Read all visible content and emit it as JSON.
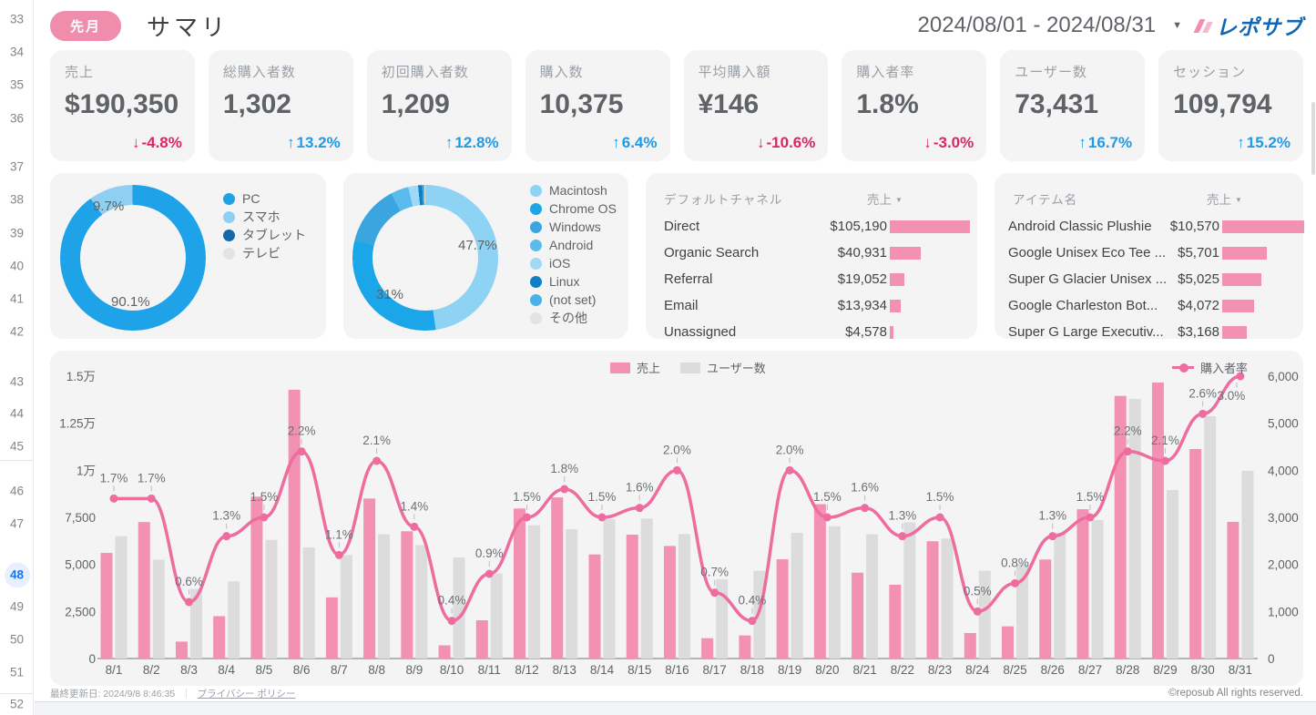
{
  "colors": {
    "accent_pink": "#f08cac",
    "bar_pink": "#f291b2",
    "bar_gray": "#dcdcdc",
    "line_pink": "#ee6c9e",
    "up_blue": "#1d9be8",
    "down_pink": "#e0245e",
    "rail_active_blue": "#1a73e8",
    "logo_blue": "#1266b6"
  },
  "rail": {
    "numbers": [
      33,
      34,
      35,
      36,
      37,
      38,
      39,
      40,
      41,
      42,
      43,
      44,
      45,
      46,
      47,
      48,
      49,
      50,
      51,
      52
    ],
    "active": 48
  },
  "header": {
    "badge": "先月",
    "title": "サマリ",
    "date_range": "2024/08/01 - 2024/08/31",
    "logo_text": "レポサブ"
  },
  "kpis": [
    {
      "label": "売上",
      "value": "$190,350",
      "delta": "-4.8%",
      "direction": "down"
    },
    {
      "label": "総購入者数",
      "value": "1,302",
      "delta": "13.2%",
      "direction": "up"
    },
    {
      "label": "初回購入者数",
      "value": "1,209",
      "delta": "12.8%",
      "direction": "up"
    },
    {
      "label": "購入数",
      "value": "10,375",
      "delta": "6.4%",
      "direction": "up"
    },
    {
      "label": "平均購入額",
      "value": "¥146",
      "delta": "-10.6%",
      "direction": "down"
    },
    {
      "label": "購入者率",
      "value": "1.8%",
      "delta": "-3.0%",
      "direction": "down"
    },
    {
      "label": "ユーザー数",
      "value": "73,431",
      "delta": "16.7%",
      "direction": "up"
    },
    {
      "label": "セッション",
      "value": "109,794",
      "delta": "15.2%",
      "direction": "up"
    }
  ],
  "device_donut": {
    "label_primary": "90.1%",
    "label_secondary": "9.7%",
    "segments": [
      {
        "label": "PC",
        "pct": 90.1,
        "color": "#1fa3e8"
      },
      {
        "label": "スマホ",
        "pct": 9.7,
        "color": "#8fd0f2"
      },
      {
        "label": "タブレット",
        "pct": 0.13,
        "color": "#1567a9"
      },
      {
        "label": "テレビ",
        "pct": 0.07,
        "color": "#e3e3e3"
      }
    ]
  },
  "os_donut": {
    "label_primary": "47.7%",
    "label_secondary": "31%",
    "segments": [
      {
        "label": "Macintosh",
        "pct": 47.7,
        "color": "#8ed2f4"
      },
      {
        "label": "Chrome OS",
        "pct": 31.0,
        "color": "#1ca6ea"
      },
      {
        "label": "Windows",
        "pct": 13.5,
        "color": "#3aa5de"
      },
      {
        "label": "Android",
        "pct": 4.0,
        "color": "#5bbbec"
      },
      {
        "label": "iOS",
        "pct": 2.2,
        "color": "#a0d9f6"
      },
      {
        "label": "Linux",
        "pct": 0.9,
        "color": "#1080c4"
      },
      {
        "label": "(not set)",
        "pct": 0.5,
        "color": "#49b1e8"
      },
      {
        "label": "その他",
        "pct": 0.2,
        "color": "#e3e3e3"
      }
    ]
  },
  "channel_table": {
    "col_dim": "デフォルトチャネル",
    "col_metric": "売上",
    "rows": [
      {
        "name": "Direct",
        "amount": "$105,190",
        "value": 105190
      },
      {
        "name": "Organic Search",
        "amount": "$40,931",
        "value": 40931
      },
      {
        "name": "Referral",
        "amount": "$19,052",
        "value": 19052
      },
      {
        "name": "Email",
        "amount": "$13,934",
        "value": 13934
      },
      {
        "name": "Unassigned",
        "amount": "$4,578",
        "value": 4578
      }
    ]
  },
  "item_table": {
    "col_dim": "アイテム名",
    "col_metric": "売上",
    "rows": [
      {
        "name": "Android Classic Plushie",
        "amount": "$10,570",
        "value": 10570
      },
      {
        "name": "Google Unisex Eco Tee ...",
        "amount": "$5,701",
        "value": 5701
      },
      {
        "name": "Super G Glacier Unisex ...",
        "amount": "$5,025",
        "value": 5025
      },
      {
        "name": "Google Charleston Bot...",
        "amount": "$4,072",
        "value": 4072
      },
      {
        "name": "Super G Large Executiv...",
        "amount": "$3,168",
        "value": 3168
      }
    ]
  },
  "chart_data": {
    "type": "combo",
    "categories": [
      "8/1",
      "8/2",
      "8/3",
      "8/4",
      "8/5",
      "8/6",
      "8/7",
      "8/8",
      "8/9",
      "8/10",
      "8/11",
      "8/12",
      "8/13",
      "8/14",
      "8/15",
      "8/16",
      "8/17",
      "8/18",
      "8/19",
      "8/20",
      "8/21",
      "8/22",
      "8/23",
      "8/24",
      "8/25",
      "8/26",
      "8/27",
      "8/28",
      "8/29",
      "8/30",
      "8/31"
    ],
    "series": [
      {
        "name": "売上",
        "type": "bar",
        "axis": "left",
        "color": "#f291b2",
        "values": [
          5610,
          7250,
          900,
          2250,
          8600,
          14280,
          3250,
          8500,
          6760,
          700,
          2030,
          7970,
          8560,
          5530,
          6580,
          5980,
          1080,
          1225,
          5270,
          8200,
          4560,
          3920,
          6230,
          1355,
          1710,
          5260,
          7930,
          13950,
          14660,
          11130,
          7260
        ]
      },
      {
        "name": "ユーザー数",
        "type": "bar",
        "axis": "right",
        "color": "#dcdcdc",
        "values": [
          2600,
          2100,
          1480,
          1640,
          2520,
          2360,
          2200,
          2640,
          2410,
          2150,
          1810,
          2830,
          2750,
          2960,
          2975,
          2645,
          1685,
          1865,
          2670,
          2810,
          2640,
          2895,
          2550,
          1865,
          2010,
          2675,
          2945,
          5515,
          3580,
          5150,
          3990
        ]
      },
      {
        "name": "購入者率",
        "type": "line",
        "axis": "percent",
        "color": "#ee6c9e",
        "unit": "%",
        "values": [
          1.7,
          1.7,
          0.6,
          1.3,
          1.5,
          2.2,
          1.1,
          2.1,
          1.4,
          0.4,
          0.9,
          1.5,
          1.8,
          1.5,
          1.6,
          2.0,
          0.7,
          0.4,
          2.0,
          1.5,
          1.6,
          1.3,
          1.5,
          0.5,
          0.8,
          1.3,
          1.5,
          2.2,
          2.1,
          2.6,
          3.0
        ]
      }
    ],
    "left_axis": {
      "ticks": [
        "0",
        "2,500",
        "5,000",
        "7,500",
        "1万",
        "1.25万",
        "1.5万"
      ],
      "max": 15000
    },
    "right_axis": {
      "ticks": [
        "0",
        "1,000",
        "2,000",
        "3,000",
        "4,000",
        "5,000",
        "6,000"
      ],
      "max": 6000
    },
    "rate_axis_max_pct": 3.0,
    "grid": false,
    "legend_position": "top"
  },
  "footer": {
    "updated": "最終更新日: 2024/9/8 8:46:35",
    "privacy": "プライバシー ポリシー",
    "copyright": "©reposub All rights reserved."
  }
}
